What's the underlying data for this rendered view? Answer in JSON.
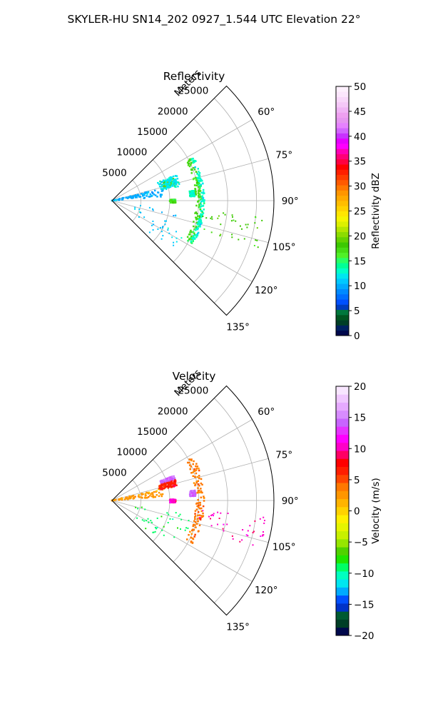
{
  "figure": {
    "suptitle": "SKYLER-HU  SN14_202  0927_1.544 UTC Elevation 22°"
  },
  "chart_data": [
    {
      "type": "heatmap",
      "subtype": "polar-sector-ppi",
      "title": "Reflectivity",
      "radial_label": "Meters",
      "r_ticks": [
        5000,
        10000,
        15000,
        20000,
        25000
      ],
      "r_tick_labels": [
        "5000",
        "10000",
        "15000",
        "20000",
        "25000"
      ],
      "rlim": [
        0,
        28000
      ],
      "theta_ticks": [
        60,
        75,
        90,
        105,
        120,
        135
      ],
      "theta_tick_labels": [
        "60°",
        "75°",
        "90°",
        "105°",
        "120°",
        "135°"
      ],
      "theta_range_deg": [
        45,
        135
      ],
      "grid": true,
      "colorbar": {
        "label": "Reflectivity dBZ",
        "range": [
          0,
          50
        ],
        "ticks": [
          0,
          5,
          10,
          15,
          20,
          25,
          30,
          35,
          40,
          45,
          50
        ],
        "tick_labels": [
          "0",
          "5",
          "10",
          "15",
          "20",
          "25",
          "30",
          "35",
          "40",
          "45",
          "50"
        ],
        "colormap": "pyart_NWSRef"
      },
      "echoes": [
        {
          "feature": "near-range clutter streak",
          "az_deg": [
            76,
            86
          ],
          "range_m": [
            0,
            9000
          ],
          "value": 10
        },
        {
          "feature": "cell",
          "az_deg": [
            70,
            76
          ],
          "range_m": [
            9000,
            11500
          ],
          "value": 19
        },
        {
          "feature": "cell edge",
          "az_deg": [
            68,
            78
          ],
          "range_m": [
            8500,
            12000
          ],
          "value": 12
        },
        {
          "feature": "small cell",
          "az_deg": [
            89,
            92
          ],
          "range_m": [
            10000,
            11000
          ],
          "value": 17
        },
        {
          "feature": "small cell",
          "az_deg": [
            83,
            87
          ],
          "range_m": [
            13500,
            14500
          ],
          "value": 13
        },
        {
          "feature": "ring",
          "az_deg": [
            62,
            118
          ],
          "range_m": [
            14500,
            15500
          ],
          "value": 17
        },
        {
          "feature": "ring",
          "az_deg": [
            62,
            118
          ],
          "range_m": [
            15300,
            16000
          ],
          "value": 13
        },
        {
          "feature": "scatter",
          "az_deg": [
            100,
            130
          ],
          "range_m": [
            4000,
            14000
          ],
          "value": 11
        },
        {
          "feature": "scatter",
          "az_deg": [
            96,
            108
          ],
          "range_m": [
            15000,
            27000
          ],
          "value": 18
        }
      ]
    },
    {
      "type": "heatmap",
      "subtype": "polar-sector-ppi",
      "title": "Velocity",
      "radial_label": "Meters",
      "r_ticks": [
        5000,
        10000,
        15000,
        20000,
        25000
      ],
      "r_tick_labels": [
        "5000",
        "10000",
        "15000",
        "20000",
        "25000"
      ],
      "rlim": [
        0,
        28000
      ],
      "theta_ticks": [
        60,
        75,
        90,
        105,
        120,
        135
      ],
      "theta_tick_labels": [
        "60°",
        "75°",
        "90°",
        "105°",
        "120°",
        "135°"
      ],
      "theta_range_deg": [
        45,
        135
      ],
      "grid": true,
      "colorbar": {
        "label": "Velocity (m/s)",
        "range": [
          -20,
          20
        ],
        "ticks": [
          -20,
          -15,
          -10,
          -5,
          0,
          5,
          10,
          15,
          20
        ],
        "tick_labels": [
          "−20",
          "−15",
          "−10",
          "−5",
          "0",
          "5",
          "10",
          "15",
          "20"
        ],
        "colormap": "pyart_BuDRd18"
      },
      "echoes": [
        {
          "feature": "near-range streak",
          "az_deg": [
            76,
            86
          ],
          "range_m": [
            0,
            9000
          ],
          "value": 2
        },
        {
          "feature": "cell",
          "az_deg": [
            68,
            72
          ],
          "range_m": [
            9000,
            11500
          ],
          "value": 14
        },
        {
          "feature": "cell",
          "az_deg": [
            72,
            78
          ],
          "range_m": [
            8500,
            11500
          ],
          "value": 7
        },
        {
          "feature": "small cell",
          "az_deg": [
            89,
            92
          ],
          "range_m": [
            10000,
            11000
          ],
          "value": 10
        },
        {
          "feature": "small cell",
          "az_deg": [
            83,
            87
          ],
          "range_m": [
            13500,
            14500
          ],
          "value": 14
        },
        {
          "feature": "ring",
          "az_deg": [
            62,
            118
          ],
          "range_m": [
            14500,
            16000
          ],
          "value": 4
        },
        {
          "feature": "scatter",
          "az_deg": [
            100,
            130
          ],
          "range_m": [
            4000,
            14000
          ],
          "value": -9
        },
        {
          "feature": "scatter",
          "az_deg": [
            96,
            108
          ],
          "range_m": [
            15000,
            27000
          ],
          "value": 10
        }
      ]
    }
  ]
}
